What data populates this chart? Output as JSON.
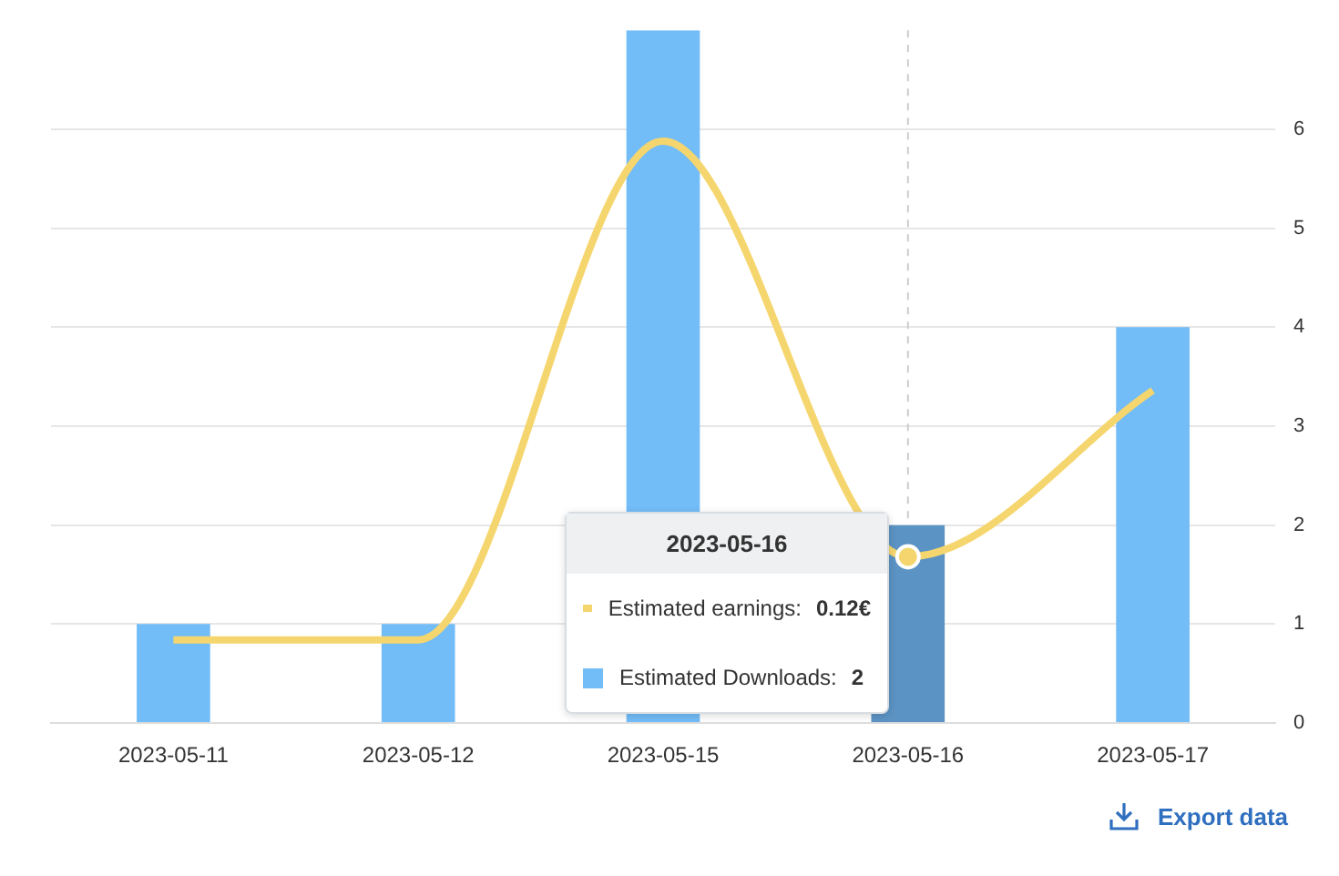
{
  "chart_data": {
    "type": "bar",
    "categories": [
      "2023-05-11",
      "2023-05-12",
      "2023-05-15",
      "2023-05-16",
      "2023-05-17"
    ],
    "series": [
      {
        "name": "Estimated Downloads:",
        "color": "#72bcf7",
        "colors": [
          "#72bcf7",
          "#72bcf7",
          "#72bcf7",
          "#5b93c4",
          "#72bcf7"
        ],
        "values": [
          1,
          1,
          7,
          2,
          4
        ],
        "value_labels": [
          null,
          null,
          null,
          "2",
          null
        ]
      },
      {
        "name": "Estimated earnings:",
        "type": "line",
        "axis": "y2",
        "color": "#f5d66e",
        "values": [
          0.06,
          0.06,
          0.42,
          0.12,
          0.24
        ],
        "value_labels": [
          null,
          null,
          null,
          "0.12€",
          null
        ]
      }
    ],
    "ylim": [
      0,
      7
    ],
    "yticks": [
      0,
      1,
      2,
      3,
      4,
      5,
      6
    ],
    "y2lim": [
      0,
      0.5
    ],
    "grid": "y",
    "legend": "bottom",
    "marker": "none",
    "line_style": "solid",
    "ref_lines": [
      {
        "axis": "x",
        "value": "2023-05-16",
        "color": "#cccccc",
        "line_style": "dashed"
      }
    ],
    "annotations": [
      "2023-05-16",
      "Export data"
    ]
  }
}
